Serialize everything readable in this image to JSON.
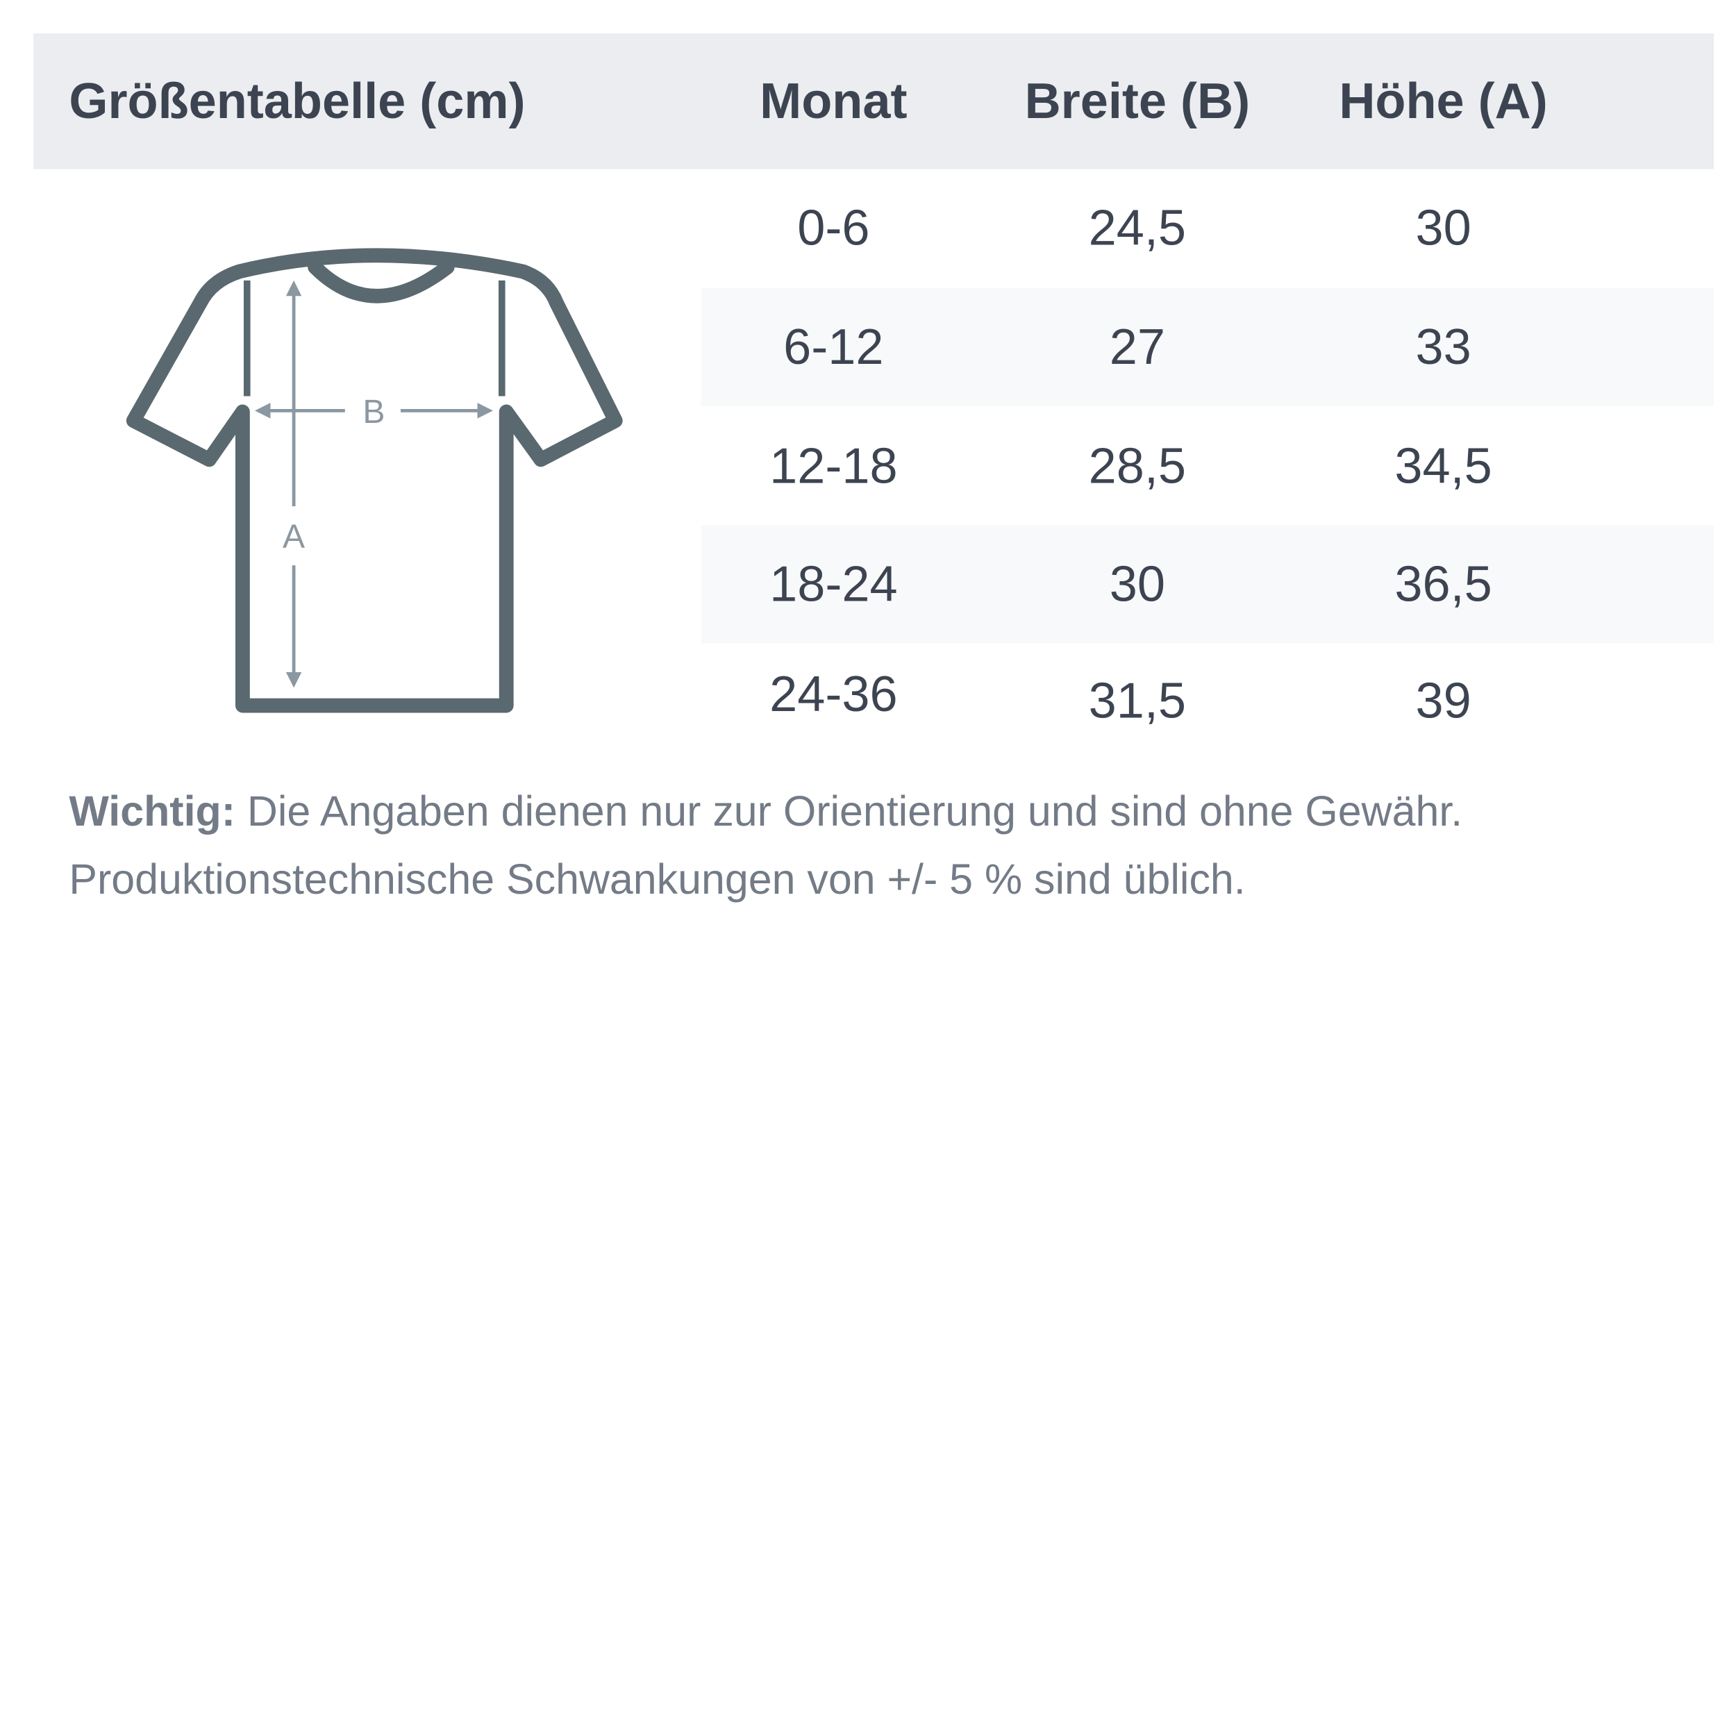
{
  "title": "Größentabelle (cm)",
  "columns": [
    "Monat",
    "Breite (B)",
    "Höhe (A)"
  ],
  "rows": [
    [
      "0-6",
      "24,5",
      "30"
    ],
    [
      "6-12",
      "27",
      "33"
    ],
    [
      "12-18",
      "28,5",
      "34,5"
    ],
    [
      "18-24",
      "30",
      "36,5"
    ],
    [
      "24-36",
      "31,5",
      "39"
    ]
  ],
  "diagram": {
    "label_width": "B",
    "label_height": "A",
    "icon": "tshirt-icon"
  },
  "note": {
    "bold": "Wichtig:",
    "line1": " Die Angaben dienen nur zur Orientierung und sind ohne Gewähr.",
    "line2": "Produktionstechnische Schwankungen von +/- 5 % sind üblich."
  },
  "colors": {
    "header_bg": "#ebedf0",
    "text": "#3d4451",
    "shirt": "#5a6870",
    "arrows": "#8b97a1",
    "note": "#737b87"
  }
}
